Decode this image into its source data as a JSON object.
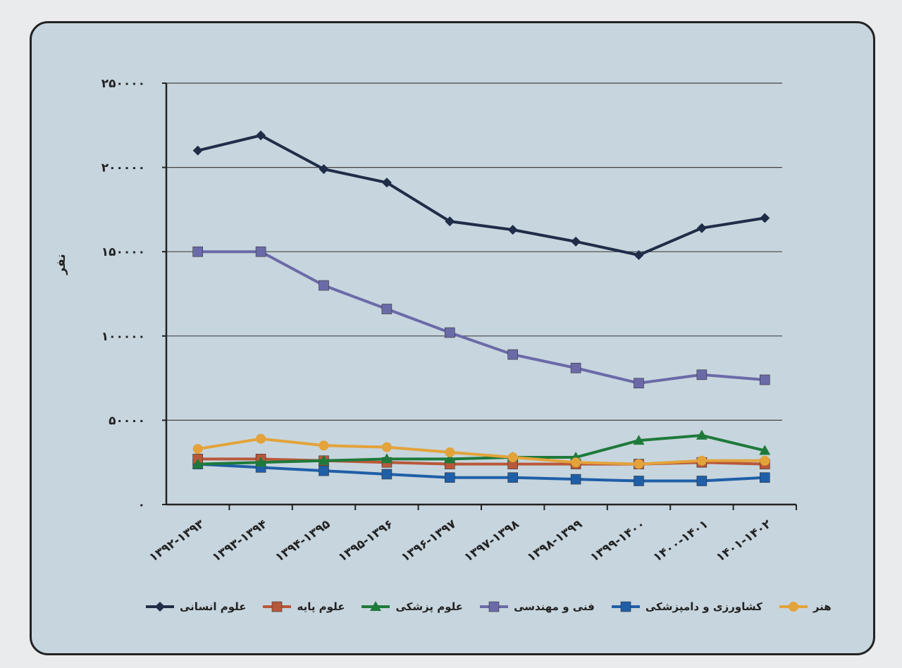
{
  "chart_data": {
    "type": "line",
    "title": "",
    "xlabel": "",
    "ylabel": "نفر",
    "ylim": [
      0,
      250000
    ],
    "yticks": [
      0,
      50000,
      100000,
      150000,
      200000,
      250000
    ],
    "ytick_labels": [
      "۰",
      "۵۰۰۰۰",
      "۱۰۰۰۰۰",
      "۱۵۰۰۰۰",
      "۲۰۰۰۰۰",
      "۲۵۰۰۰۰"
    ],
    "grid": true,
    "legend_position": "bottom",
    "categories": [
      "۱۳۹۲-۱۳۹۳",
      "۱۳۹۳-۱۳۹۴",
      "۱۳۹۴-۱۳۹۵",
      "۱۳۹۵-۱۳۹۶",
      "۱۳۹۶-۱۳۹۷",
      "۱۳۹۷-۱۳۹۸",
      "۱۳۹۸-۱۳۹۹",
      "۱۳۹۹-۱۴۰۰",
      "۱۴۰۰-۱۴۰۱",
      "۱۴۰۱-۱۴۰۲"
    ],
    "series": [
      {
        "name": "علوم انسانی",
        "color": "#1f2d48",
        "marker": "diamond",
        "values": [
          210000,
          219000,
          199000,
          191000,
          168000,
          163000,
          156000,
          148000,
          164000,
          170000
        ]
      },
      {
        "name": "علوم پایه",
        "color": "#b8583a",
        "marker": "square",
        "values": [
          27000,
          27000,
          26000,
          25000,
          24000,
          24000,
          24000,
          24000,
          25000,
          24000
        ]
      },
      {
        "name": "علوم پزشکی",
        "color": "#1e7a3a",
        "marker": "triangle",
        "values": [
          24000,
          25000,
          26000,
          27000,
          27000,
          28000,
          28000,
          38000,
          41000,
          32000
        ]
      },
      {
        "name": "فنی و مهندسی",
        "color": "#6b6aa8",
        "marker": "square",
        "values": [
          150000,
          150000,
          130000,
          116000,
          102000,
          89000,
          81000,
          72000,
          77000,
          74000
        ]
      },
      {
        "name": "کشاورزی و دامپزشکی",
        "color": "#1f5fa8",
        "marker": "square",
        "values": [
          24000,
          22000,
          20000,
          18000,
          16000,
          16000,
          15000,
          14000,
          14000,
          16000
        ]
      },
      {
        "name": "هنر",
        "color": "#e3a33a",
        "marker": "circle",
        "values": [
          33000,
          39000,
          35000,
          34000,
          31000,
          28000,
          25000,
          24000,
          26000,
          26000
        ]
      }
    ]
  }
}
